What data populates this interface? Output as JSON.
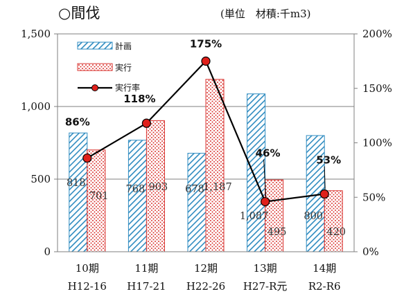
{
  "header": {
    "title": "○間伐",
    "unit": "(単位　材積:千m3)"
  },
  "chart_data": {
    "type": "bar",
    "categories": [
      "10期",
      "11期",
      "12期",
      "13期",
      "14期"
    ],
    "categories_sub": [
      "H12-16",
      "H17-21",
      "H22-26",
      "H27-R元",
      "R2-R6"
    ],
    "series": [
      {
        "name": "計画",
        "type": "bar",
        "axis": "left",
        "values": [
          818,
          768,
          678,
          1087,
          800
        ],
        "labels": [
          "818",
          "768",
          "678",
          "1,087",
          "800"
        ],
        "color": "#2e8bc0",
        "pattern": "diagonal-hatch"
      },
      {
        "name": "実行",
        "type": "bar",
        "axis": "left",
        "values": [
          701,
          903,
          1187,
          495,
          420
        ],
        "labels": [
          "701",
          "903",
          "1,187",
          "495",
          "420"
        ],
        "color": "#d9302c",
        "pattern": "dots"
      },
      {
        "name": "実行率",
        "type": "line",
        "axis": "right",
        "values": [
          86,
          118,
          175,
          46,
          53
        ],
        "labels": [
          "86%",
          "118%",
          "175%",
          "46%",
          "53%"
        ],
        "color": "#000000",
        "marker_color": "#e0201b"
      }
    ],
    "y_left": {
      "ylim": [
        0,
        1500
      ],
      "ticks": [
        0,
        500,
        1000,
        1500
      ],
      "tick_labels": [
        "0",
        "500",
        "1,000",
        "1,500"
      ]
    },
    "y_right": {
      "ylim": [
        0,
        200
      ],
      "ticks": [
        0,
        50,
        100,
        150,
        200
      ],
      "tick_labels": [
        "0%",
        "50%",
        "100%",
        "150%",
        "200%"
      ]
    },
    "grid": true,
    "legend_position": "top-left"
  }
}
